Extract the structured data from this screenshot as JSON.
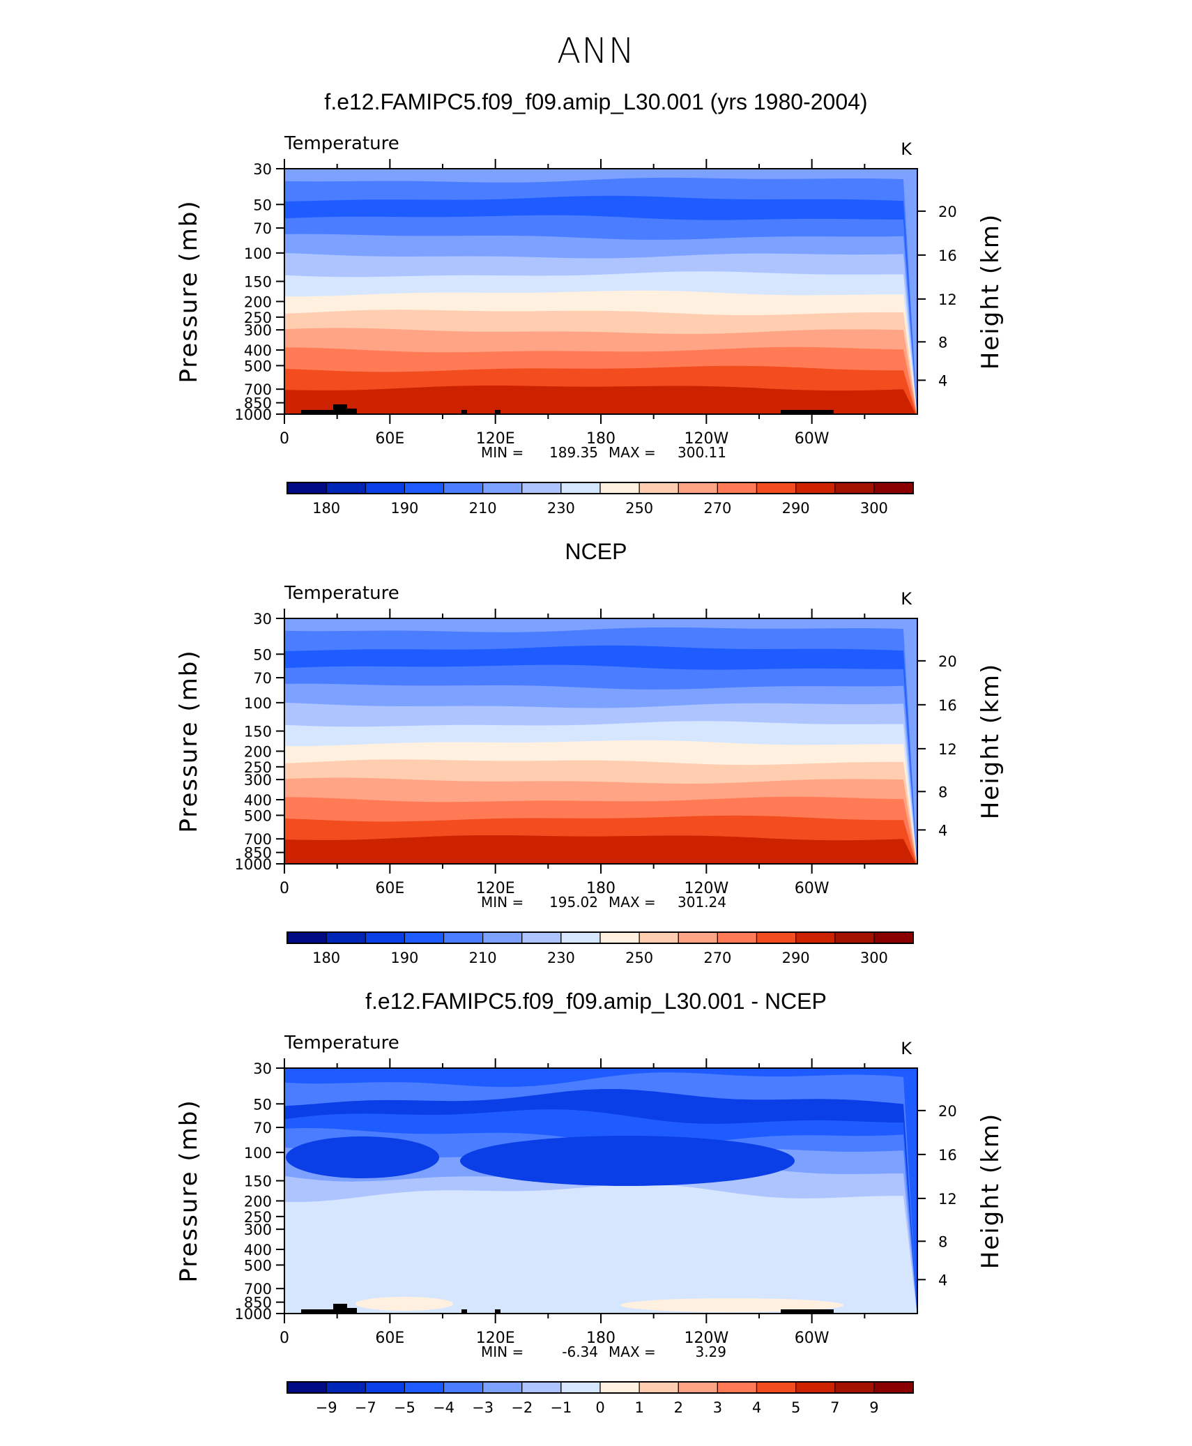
{
  "page": {
    "title": "ANN"
  },
  "chart_data": [
    {
      "type": "contour",
      "title": "f.e12.FAMIPC5.f09_f09.amip_L30.001 (yrs 1980-2004)",
      "variable": "Temperature",
      "units": "K",
      "ylabel": "Pressure (mb)",
      "ylabel_right": "Height (km)",
      "pressure_ticks": [
        "30",
        "50",
        "70",
        "100",
        "150",
        "200",
        "250",
        "300",
        "400",
        "500",
        "700",
        "850",
        "1000"
      ],
      "height_ticks": [
        "20",
        "16",
        "12",
        "8",
        "4"
      ],
      "lon_ticks": [
        "0",
        "60E",
        "120E",
        "180",
        "120W",
        "60W"
      ],
      "min_label": "MIN =",
      "min_value": "189.35",
      "max_label": "MAX =",
      "max_value": "300.11",
      "colorbar_labels": [
        "180",
        "190",
        "210",
        "230",
        "250",
        "270",
        "290",
        "300"
      ],
      "colorbar_colors": [
        "#000a85",
        "#0026b8",
        "#0a3ee6",
        "#1e5cff",
        "#4a7dff",
        "#7da1ff",
        "#adc4ff",
        "#d6e6ff",
        "#fff0e0",
        "#ffcdb0",
        "#ffa585",
        "#ff7a55",
        "#f24c1f",
        "#cc2200",
        "#a31100",
        "#8a0000"
      ],
      "layers": [
        "#7da1ff",
        "#4a7dff",
        "#1e5cff",
        "#4a7dff",
        "#7da1ff",
        "#adc4ff",
        "#d6e6ff",
        "#fff0e0",
        "#ffcdb0",
        "#ffa585",
        "#ff7a55",
        "#f24c1f",
        "#cc2200"
      ]
    },
    {
      "type": "contour",
      "title": "NCEP",
      "variable": "Temperature",
      "units": "K",
      "ylabel": "Pressure (mb)",
      "ylabel_right": "Height (km)",
      "pressure_ticks": [
        "30",
        "50",
        "70",
        "100",
        "150",
        "200",
        "250",
        "300",
        "400",
        "500",
        "700",
        "850",
        "1000"
      ],
      "height_ticks": [
        "20",
        "16",
        "12",
        "8",
        "4"
      ],
      "lon_ticks": [
        "0",
        "60E",
        "120E",
        "180",
        "120W",
        "60W"
      ],
      "min_label": "MIN =",
      "min_value": "195.02",
      "max_label": "MAX =",
      "max_value": "301.24",
      "colorbar_labels": [
        "180",
        "190",
        "210",
        "230",
        "250",
        "270",
        "290",
        "300"
      ],
      "colorbar_colors": [
        "#000a85",
        "#0026b8",
        "#0a3ee6",
        "#1e5cff",
        "#4a7dff",
        "#7da1ff",
        "#adc4ff",
        "#d6e6ff",
        "#fff0e0",
        "#ffcdb0",
        "#ffa585",
        "#ff7a55",
        "#f24c1f",
        "#cc2200",
        "#a31100",
        "#8a0000"
      ],
      "layers": [
        "#7da1ff",
        "#4a7dff",
        "#1e5cff",
        "#4a7dff",
        "#7da1ff",
        "#adc4ff",
        "#d6e6ff",
        "#fff0e0",
        "#ffcdb0",
        "#ffa585",
        "#ff7a55",
        "#f24c1f",
        "#cc2200"
      ]
    },
    {
      "type": "contour",
      "title": "f.e12.FAMIPC5.f09_f09.amip_L30.001 - NCEP",
      "variable": "Temperature",
      "units": "K",
      "ylabel": "Pressure (mb)",
      "ylabel_right": "Height (km)",
      "pressure_ticks": [
        "30",
        "50",
        "70",
        "100",
        "150",
        "200",
        "250",
        "300",
        "400",
        "500",
        "700",
        "850",
        "1000"
      ],
      "height_ticks": [
        "20",
        "16",
        "12",
        "8",
        "4"
      ],
      "lon_ticks": [
        "0",
        "60E",
        "120E",
        "180",
        "120W",
        "60W"
      ],
      "min_label": "MIN =",
      "min_value": "-6.34",
      "max_label": "MAX =",
      "max_value": "3.29",
      "colorbar_labels": [
        "−9",
        "−7",
        "−5",
        "−4",
        "−3",
        "−2",
        "−1",
        "0",
        "1",
        "2",
        "3",
        "4",
        "5",
        "7",
        "9"
      ],
      "colorbar_colors": [
        "#000a85",
        "#0026b8",
        "#0a3ee6",
        "#1e5cff",
        "#4a7dff",
        "#7da1ff",
        "#adc4ff",
        "#d6e6ff",
        "#fff0e0",
        "#ffcdb0",
        "#ffa585",
        "#ff7a55",
        "#f24c1f",
        "#cc2200",
        "#a31100",
        "#8a0000"
      ],
      "layers": [
        "#1e5cff",
        "#4a7dff",
        "#0a3ee6",
        "#1e5cff",
        "#4a7dff",
        "#7da1ff",
        "#adc4ff",
        "#d6e6ff",
        "#d6e6ff",
        "#d6e6ff",
        "#d6e6ff",
        "#d6e6ff",
        "#d6e6ff"
      ]
    }
  ]
}
